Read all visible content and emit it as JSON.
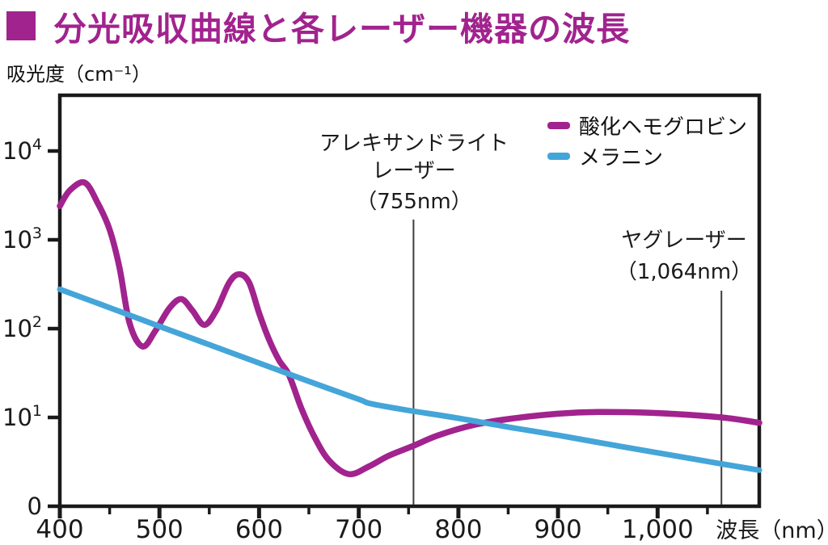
{
  "header": {
    "title": "分光吸収曲線と各レーザー機器の波長",
    "bullet_color": "#A1238E"
  },
  "chart_data": {
    "type": "line",
    "title": "分光吸収曲線と各レーザー機器の波長",
    "grid": false,
    "legend_position": "top-right",
    "x_axis": {
      "label": "波長（nm）",
      "min": 400,
      "max": 1102,
      "major_ticks": [
        400,
        500,
        600,
        700,
        800,
        900,
        1000
      ],
      "major_tick_labels": [
        "400",
        "500",
        "600",
        "700",
        "800",
        "900",
        "1,000"
      ],
      "minor_ticks": [
        450,
        550,
        650,
        750,
        850,
        950,
        1050
      ]
    },
    "y_axis": {
      "label": "吸光度（cm⁻¹）",
      "scale": "log",
      "tick_values": [
        10000,
        1000,
        100,
        10,
        0
      ],
      "tick_labels": [
        "10⁴",
        "10³",
        "10²",
        "10¹",
        "0"
      ]
    },
    "series": [
      {
        "name": "酸化ヘモグロビン",
        "color": "#A1238E",
        "points": [
          [
            400,
            2400
          ],
          [
            410,
            3600
          ],
          [
            425,
            4400
          ],
          [
            438,
            2600
          ],
          [
            450,
            1300
          ],
          [
            460,
            480
          ],
          [
            470,
            115
          ],
          [
            483,
            63
          ],
          [
            496,
            95
          ],
          [
            510,
            170
          ],
          [
            522,
            215
          ],
          [
            533,
            160
          ],
          [
            545,
            110
          ],
          [
            557,
            160
          ],
          [
            570,
            330
          ],
          [
            580,
            410
          ],
          [
            590,
            330
          ],
          [
            600,
            150
          ],
          [
            610,
            75
          ],
          [
            620,
            44
          ],
          [
            630,
            30
          ],
          [
            642,
            13
          ],
          [
            655,
            6.2
          ],
          [
            670,
            3.3
          ],
          [
            690,
            2.3
          ],
          [
            710,
            2.8
          ],
          [
            730,
            3.7
          ],
          [
            755,
            4.8
          ],
          [
            780,
            6.3
          ],
          [
            815,
            8.2
          ],
          [
            850,
            9.6
          ],
          [
            900,
            11
          ],
          [
            940,
            11.5
          ],
          [
            1000,
            11.2
          ],
          [
            1064,
            10
          ],
          [
            1102,
            8.7
          ]
        ]
      },
      {
        "name": "メラニン",
        "color": "#44A5D9",
        "points": [
          [
            400,
            277
          ],
          [
            450,
            172
          ],
          [
            500,
            106
          ],
          [
            550,
            66
          ],
          [
            600,
            41
          ],
          [
            650,
            25.5
          ],
          [
            700,
            16
          ],
          [
            713,
            14.2
          ],
          [
            750,
            12
          ],
          [
            800,
            9.8
          ],
          [
            850,
            7.8
          ],
          [
            900,
            6.3
          ],
          [
            950,
            5
          ],
          [
            1000,
            4
          ],
          [
            1064,
            3
          ],
          [
            1102,
            2.55
          ]
        ]
      }
    ],
    "annotations": [
      {
        "label_lines": [
          "アレキサンドライト",
          "レーザー",
          "（755nm）"
        ],
        "wavelength_nm": 755
      },
      {
        "label_lines": [
          "ヤグレーザー",
          "（1,064nm）"
        ],
        "wavelength_nm": 1064
      }
    ]
  }
}
